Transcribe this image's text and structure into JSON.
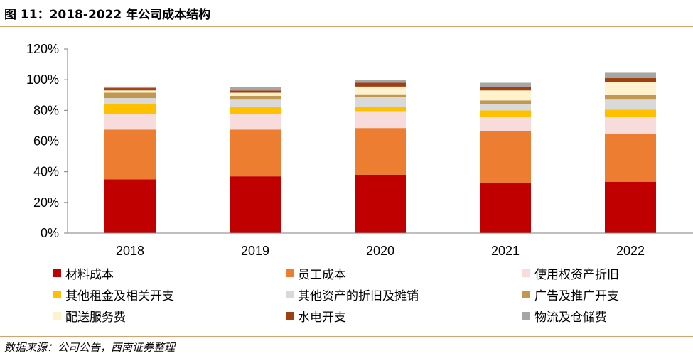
{
  "title": "图 11：2018-2022 年公司成本结构",
  "source": "数据来源：公司公告，西南证券整理",
  "chart_data": {
    "type": "bar",
    "stacked": true,
    "categories": [
      "2018",
      "2019",
      "2020",
      "2021",
      "2022"
    ],
    "ylim": [
      0,
      120
    ],
    "yticks": [
      "0%",
      "20%",
      "40%",
      "60%",
      "80%",
      "100%",
      "120%"
    ],
    "grid": false,
    "legend_position": "bottom",
    "series": [
      {
        "name": "材料成本",
        "color": "#c00000",
        "values": [
          35,
          37,
          38,
          32.5,
          33.5
        ]
      },
      {
        "name": "员工成本",
        "color": "#ed7d31",
        "values": [
          32.5,
          30.5,
          30.5,
          34,
          31
        ]
      },
      {
        "name": "使用权资产折旧",
        "color": "#f8dcdc",
        "values": [
          10,
          10,
          11,
          9.5,
          11
        ]
      },
      {
        "name": "其他租金及相关开支",
        "color": "#ffc000",
        "values": [
          6.5,
          4.5,
          3,
          4,
          5
        ]
      },
      {
        "name": "其他资产的折旧及摊销",
        "color": "#d9d9d9",
        "values": [
          4,
          5,
          6,
          4,
          6.5
        ]
      },
      {
        "name": "广告及推广开支",
        "color": "#c09850",
        "values": [
          3.5,
          2.5,
          2,
          2.5,
          3
        ]
      },
      {
        "name": "配送服务费",
        "color": "#fff2cc",
        "values": [
          1.5,
          2,
          5,
          6.5,
          8.5
        ]
      },
      {
        "name": "水电开支",
        "color": "#a04010",
        "values": [
          1.5,
          1.5,
          2.5,
          2,
          2.5
        ]
      },
      {
        "name": "物流及仓储费",
        "color": "#a6a6a6",
        "values": [
          1,
          2,
          2,
          3,
          3.5
        ]
      }
    ]
  }
}
